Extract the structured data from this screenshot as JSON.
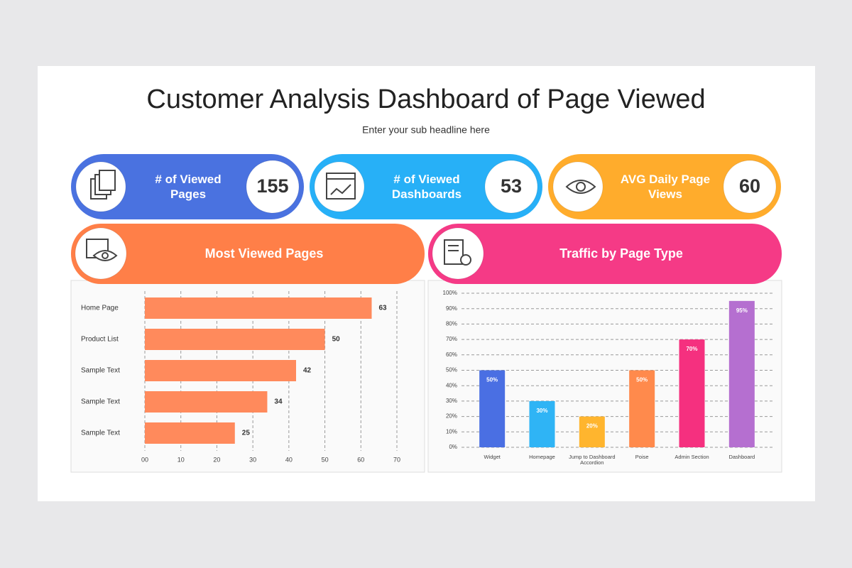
{
  "header": {
    "title": "Customer Analysis Dashboard of Page Viewed",
    "subtitle": "Enter your sub headline here"
  },
  "kpis": [
    {
      "label": "# of Viewed Pages",
      "value": 155,
      "color": "#4a72e0"
    },
    {
      "label": "# of Viewed Dashboards",
      "value": 53,
      "color": "#27b0f7"
    },
    {
      "label": "AVG Daily Page Views",
      "value": 60,
      "color": "#ffac2c"
    }
  ],
  "chart_data": [
    {
      "type": "hbar",
      "title": "Most Viewed Pages",
      "header_color": "#ff7f48",
      "categories": [
        "Home Page",
        "Product List",
        "Sample Text",
        "Sample Text",
        "Sample Text"
      ],
      "values": [
        63,
        50,
        42,
        34,
        25
      ],
      "color": "#ff8a5c",
      "xlim": [
        0,
        70
      ],
      "xticks": [
        {
          "value": 0,
          "label": "00"
        },
        10,
        20,
        30,
        40,
        50,
        60,
        70
      ],
      "grid": true
    },
    {
      "type": "bar",
      "title": "Traffic by Page Type",
      "header_color": "#f53a86",
      "categories": [
        "Widget",
        "Homepage",
        "Jump to Dashboard Accordion",
        "Poise",
        "Admin Section",
        "Dashboard"
      ],
      "values": [
        50,
        30,
        20,
        50,
        70,
        95
      ],
      "value_labels": [
        "50%",
        "30%",
        "20%",
        "50%",
        "70%",
        "95%"
      ],
      "colors": [
        "#4a6fe3",
        "#2fb4f5",
        "#ffb52e",
        "#ff8a4c",
        "#f5307f",
        "#b56fd0"
      ],
      "ylim": [
        0,
        100
      ],
      "yticks": [
        {
          "value": 0,
          "label": "0%"
        },
        {
          "value": 10,
          "label": "10%"
        },
        {
          "value": 20,
          "label": "20%"
        },
        {
          "value": 30,
          "label": "30%"
        },
        {
          "value": 40,
          "label": "40%"
        },
        {
          "value": 50,
          "label": "50%"
        },
        {
          "value": 60,
          "label": "60%"
        },
        {
          "value": 70,
          "label": "70%"
        },
        {
          "value": 80,
          "label": "80%"
        },
        {
          "value": 90,
          "label": "90%"
        },
        {
          "value": 100,
          "label": "100%"
        }
      ],
      "grid": true
    }
  ]
}
